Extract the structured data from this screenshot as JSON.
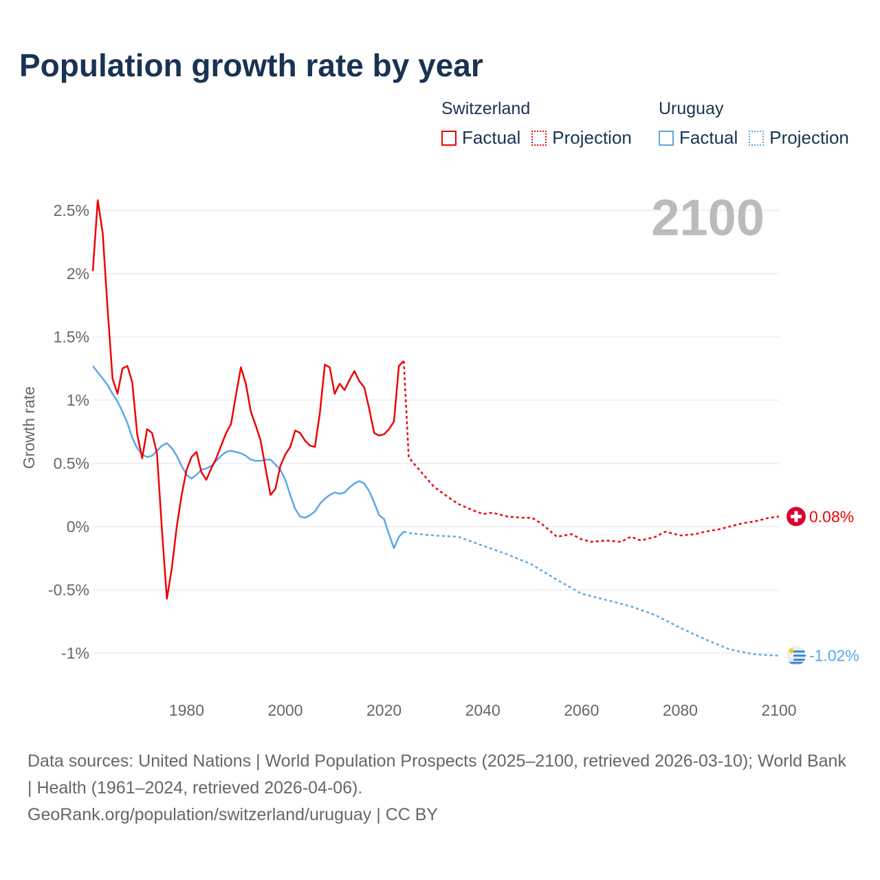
{
  "chart_data": {
    "type": "line",
    "title": "Population growth rate by year",
    "ylabel": "Growth rate",
    "xlabel": "",
    "xlim": [
      1961,
      2100
    ],
    "ylim": [
      -1.2,
      2.7
    ],
    "grid": true,
    "x_ticks": [
      1980,
      2000,
      2020,
      2040,
      2060,
      2080,
      2100
    ],
    "y_ticks": [
      {
        "value": 2.5,
        "label": "2.5%"
      },
      {
        "value": 2,
        "label": "2%"
      },
      {
        "value": 1.5,
        "label": "1.5%"
      },
      {
        "value": 1,
        "label": "1%"
      },
      {
        "value": 0.5,
        "label": "0.5%"
      },
      {
        "value": 0,
        "label": "0%"
      },
      {
        "value": -0.5,
        "label": "-0.5%"
      },
      {
        "value": -1,
        "label": "-1%"
      }
    ],
    "year_watermark": "2100",
    "legend_placement": "top-right",
    "series": [
      {
        "name": "Switzerland",
        "color": "#ee0000",
        "factual_label": "Factual",
        "projection_label": "Projection",
        "end_label": "0.08%",
        "flag": "switzerland-flag",
        "factual": {
          "x": [
            1961,
            1962,
            1963,
            1964,
            1965,
            1966,
            1967,
            1968,
            1969,
            1970,
            1971,
            1972,
            1973,
            1974,
            1975,
            1976,
            1977,
            1978,
            1979,
            1980,
            1981,
            1982,
            1983,
            1984,
            1985,
            1986,
            1987,
            1988,
            1989,
            1990,
            1991,
            1992,
            1993,
            1994,
            1995,
            1996,
            1997,
            1998,
            1999,
            2000,
            2001,
            2002,
            2003,
            2004,
            2005,
            2006,
            2007,
            2008,
            2009,
            2010,
            2011,
            2012,
            2013,
            2014,
            2015,
            2016,
            2017,
            2018,
            2019,
            2020,
            2021,
            2022,
            2023,
            2024
          ],
          "y": [
            2.02,
            2.58,
            2.32,
            1.72,
            1.17,
            1.05,
            1.25,
            1.27,
            1.14,
            0.73,
            0.54,
            0.77,
            0.74,
            0.58,
            -0.02,
            -0.57,
            -0.33,
            0.0,
            0.25,
            0.45,
            0.55,
            0.59,
            0.43,
            0.37,
            0.46,
            0.54,
            0.64,
            0.74,
            0.81,
            1.04,
            1.26,
            1.13,
            0.91,
            0.8,
            0.68,
            0.46,
            0.25,
            0.3,
            0.48,
            0.57,
            0.63,
            0.76,
            0.74,
            0.68,
            0.64,
            0.63,
            0.9,
            1.28,
            1.26,
            1.05,
            1.13,
            1.08,
            1.16,
            1.23,
            1.15,
            1.1,
            0.93,
            0.74,
            0.72,
            0.73,
            0.77,
            0.83,
            1.27,
            1.31
          ]
        },
        "projection": {
          "x": [
            2024,
            2025,
            2026,
            2028,
            2030,
            2032,
            2035,
            2038,
            2040,
            2042,
            2045,
            2048,
            2050,
            2052,
            2055,
            2058,
            2060,
            2062,
            2065,
            2068,
            2070,
            2072,
            2075,
            2077,
            2080,
            2083,
            2085,
            2088,
            2090,
            2093,
            2095,
            2098,
            2100
          ],
          "y": [
            1.31,
            0.55,
            0.5,
            0.41,
            0.32,
            0.26,
            0.18,
            0.13,
            0.1,
            0.11,
            0.08,
            0.07,
            0.07,
            0.02,
            -0.08,
            -0.06,
            -0.1,
            -0.12,
            -0.11,
            -0.12,
            -0.08,
            -0.11,
            -0.08,
            -0.04,
            -0.07,
            -0.06,
            -0.04,
            -0.02,
            0.0,
            0.03,
            0.04,
            0.07,
            0.08
          ]
        }
      },
      {
        "name": "Uruguay",
        "color": "#5aa6ea",
        "factual_label": "Factual",
        "projection_label": "Projection",
        "end_label": "-1.02%",
        "flag": "uruguay-flag",
        "factual": {
          "x": [
            1961,
            1962,
            1963,
            1964,
            1965,
            1966,
            1967,
            1968,
            1969,
            1970,
            1971,
            1972,
            1973,
            1974,
            1975,
            1976,
            1977,
            1978,
            1979,
            1980,
            1981,
            1982,
            1983,
            1984,
            1985,
            1986,
            1987,
            1988,
            1989,
            1990,
            1991,
            1992,
            1993,
            1994,
            1995,
            1996,
            1997,
            1998,
            1999,
            2000,
            2001,
            2002,
            2003,
            2004,
            2005,
            2006,
            2007,
            2008,
            2009,
            2010,
            2011,
            2012,
            2013,
            2014,
            2015,
            2016,
            2017,
            2018,
            2019,
            2020,
            2021,
            2022,
            2023,
            2024
          ],
          "y": [
            1.27,
            1.22,
            1.17,
            1.12,
            1.05,
            0.99,
            0.91,
            0.82,
            0.7,
            0.62,
            0.57,
            0.55,
            0.56,
            0.6,
            0.64,
            0.66,
            0.62,
            0.56,
            0.48,
            0.41,
            0.38,
            0.41,
            0.45,
            0.46,
            0.48,
            0.52,
            0.56,
            0.59,
            0.6,
            0.59,
            0.58,
            0.56,
            0.53,
            0.52,
            0.52,
            0.53,
            0.53,
            0.49,
            0.45,
            0.37,
            0.25,
            0.14,
            0.08,
            0.07,
            0.09,
            0.12,
            0.18,
            0.22,
            0.25,
            0.27,
            0.26,
            0.27,
            0.31,
            0.34,
            0.36,
            0.34,
            0.28,
            0.19,
            0.09,
            0.06,
            -0.06,
            -0.17,
            -0.08,
            -0.04
          ]
        },
        "projection": {
          "x": [
            2024,
            2025,
            2030,
            2035,
            2040,
            2045,
            2050,
            2055,
            2060,
            2065,
            2070,
            2075,
            2080,
            2085,
            2090,
            2095,
            2100
          ],
          "y": [
            -0.04,
            -0.05,
            -0.07,
            -0.08,
            -0.15,
            -0.22,
            -0.3,
            -0.42,
            -0.53,
            -0.58,
            -0.63,
            -0.7,
            -0.8,
            -0.89,
            -0.97,
            -1.01,
            -1.02
          ]
        }
      }
    ]
  },
  "footer": {
    "sources": "Data sources: United Nations | World Population Prospects (2025–2100, retrieved 2026-03-10); World Bank | Health (1961–2024, retrieved 2026-04-06).",
    "credit": "GeoRank.org/population/switzerland/uruguay | CC BY"
  }
}
